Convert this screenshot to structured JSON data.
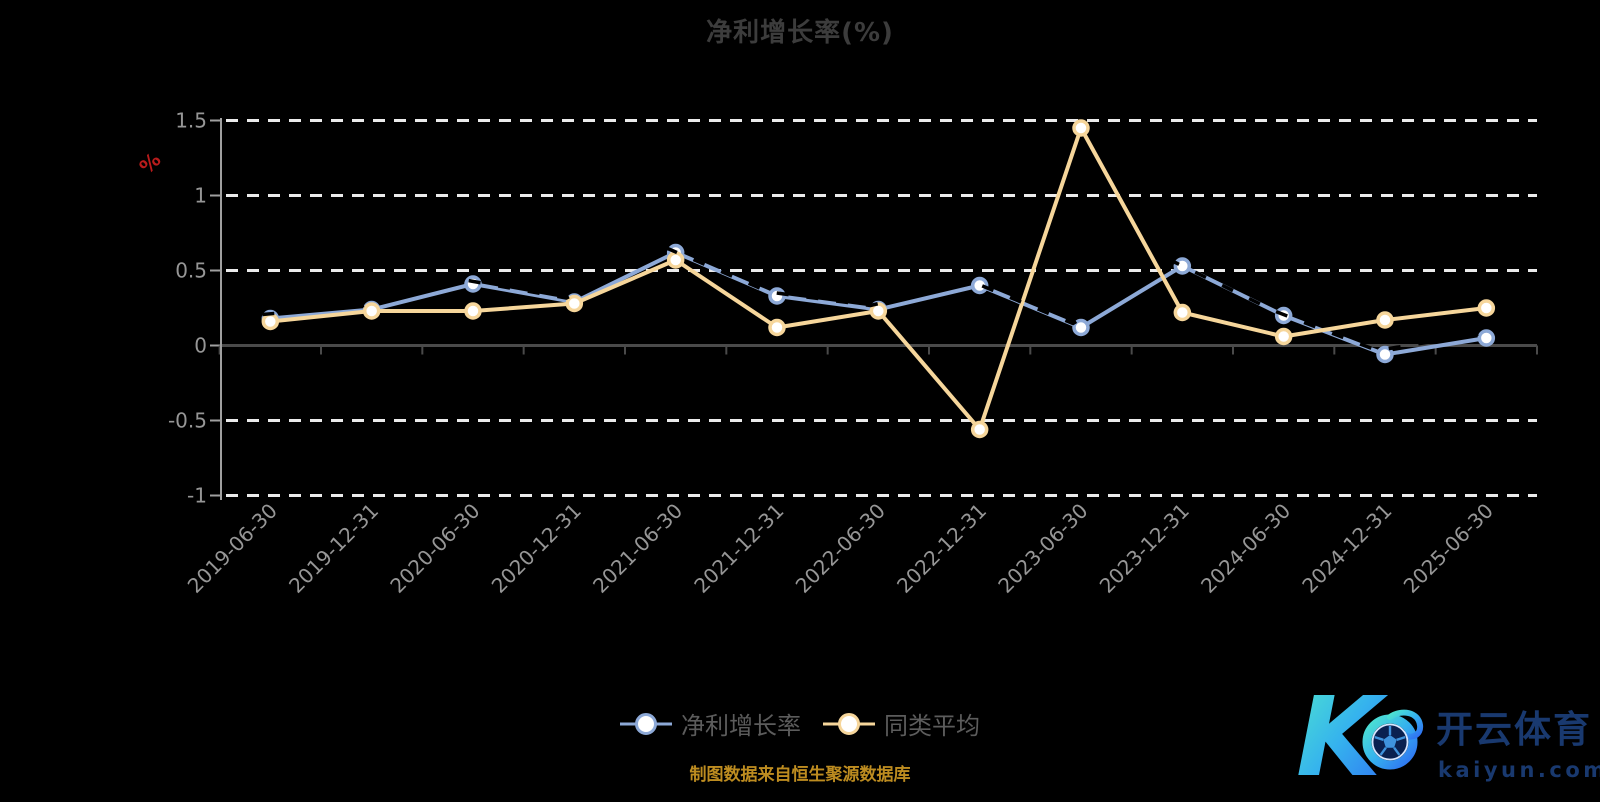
{
  "source_note": "制图数据来自恒生聚源数据库",
  "watermark": {
    "brand_letter": "K",
    "brand_name": "开云体育",
    "brand_domain": "kaiyun.com"
  },
  "colors": {
    "background": "#000000",
    "title": "#3c3c3c",
    "axis_label": "#969696",
    "grid": "#ebebeb",
    "x_axis": "#4a4a4a",
    "y_axis": "#a0a0a0",
    "axis_name": "#b91b1b",
    "legend_text": "#5c5c5c",
    "source_text": "#bd8c20",
    "brand_text": "#19396f"
  },
  "chart_data": {
    "type": "line",
    "title": "净利增长率(%)",
    "categories": [
      "2019-06-30",
      "2019-12-31",
      "2020-06-30",
      "2020-12-31",
      "2021-06-30",
      "2021-12-31",
      "2022-06-30",
      "2022-12-31",
      "2023-06-30",
      "2023-12-31",
      "2024-06-30",
      "2024-12-31",
      "2025-06-30"
    ],
    "series": [
      {
        "name": "净利增长率",
        "color": "#8da9d7",
        "values": [
          0.18,
          0.24,
          0.41,
          0.29,
          0.62,
          0.33,
          0.24,
          0.4,
          0.12,
          0.53,
          0.2,
          -0.06,
          0.05
        ]
      },
      {
        "name": "同类平均",
        "color": "#f6d69b",
        "values": [
          0.16,
          0.23,
          0.23,
          0.28,
          0.57,
          0.12,
          0.23,
          -0.56,
          1.45,
          0.22,
          0.06,
          0.17,
          0.25
        ]
      }
    ],
    "ylabel": "%",
    "ylim": [
      -1,
      1.5
    ],
    "yticks": [
      1.5,
      1,
      0.5,
      0,
      -0.5,
      -1
    ],
    "grid": "horizontal-dashed-white",
    "legend_position": "bottom",
    "x_axis_at": 0,
    "marker": "circle-white-fill"
  }
}
